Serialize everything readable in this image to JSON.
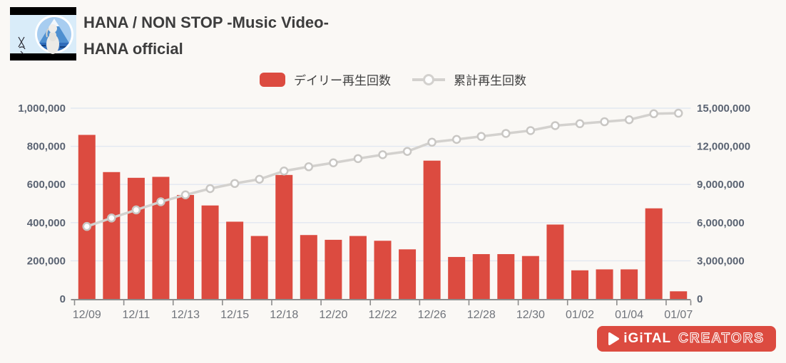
{
  "header": {
    "video_title": "HANA / NON STOP -Music Video-",
    "channel_name": "HANA official"
  },
  "logo": {
    "digital": "iGiTAL",
    "creators": "CREATORS"
  },
  "colors": {
    "bar": "#dc4b40",
    "line": "#d3d1ce",
    "marker_stroke": "#c9c7c4",
    "grid": "#e2e7f1",
    "axis": "#8d8d8d",
    "y_label": "#5a6372",
    "x_label": "#70747b",
    "background": "#faf8f5",
    "title_text": "#3d3d3d",
    "logo_red": "#dc4b40"
  },
  "chart_data": {
    "type": "bar",
    "subtype": "combo-bar-line",
    "n_points": 25,
    "x_tick_labels": [
      "12/09",
      "12/11",
      "12/13",
      "12/15",
      "12/18",
      "12/20",
      "12/22",
      "12/26",
      "12/28",
      "12/30",
      "01/02",
      "01/04",
      "01/07"
    ],
    "x_tick_every": 2,
    "series": [
      {
        "name": "デイリー再生回数",
        "type": "bar",
        "axis": "left",
        "values": [
          860000,
          665000,
          635000,
          640000,
          545000,
          490000,
          405000,
          330000,
          650000,
          335000,
          310000,
          330000,
          305000,
          260000,
          725000,
          220000,
          235000,
          235000,
          225000,
          390000,
          150000,
          155000,
          155000,
          475000,
          40000
        ]
      },
      {
        "name": "累計再生回数",
        "type": "line",
        "axis": "right",
        "values": [
          5700000,
          6365000,
          7000000,
          7640000,
          8185000,
          8675000,
          9080000,
          9410000,
          10060000,
          10395000,
          10705000,
          11035000,
          11340000,
          11600000,
          12325000,
          12545000,
          12780000,
          13015000,
          13240000,
          13630000,
          13780000,
          13935000,
          14090000,
          14565000,
          14605000
        ]
      }
    ],
    "left_axis": {
      "tick_labels": [
        "0",
        "200,000",
        "400,000",
        "600,000",
        "800,000",
        "1,000,000"
      ],
      "tick_values": [
        0,
        200000,
        400000,
        600000,
        800000,
        1000000
      ],
      "min": 0,
      "max": 1000000
    },
    "right_axis": {
      "tick_labels": [
        "0",
        "3,000,000",
        "6,000,000",
        "9,000,000",
        "12,000,000",
        "15,000,000"
      ],
      "tick_values": [
        0,
        3000000,
        6000000,
        9000000,
        12000000,
        15000000
      ],
      "min": 0,
      "max": 15000000
    },
    "grid": true,
    "legend_position": "top-center"
  }
}
